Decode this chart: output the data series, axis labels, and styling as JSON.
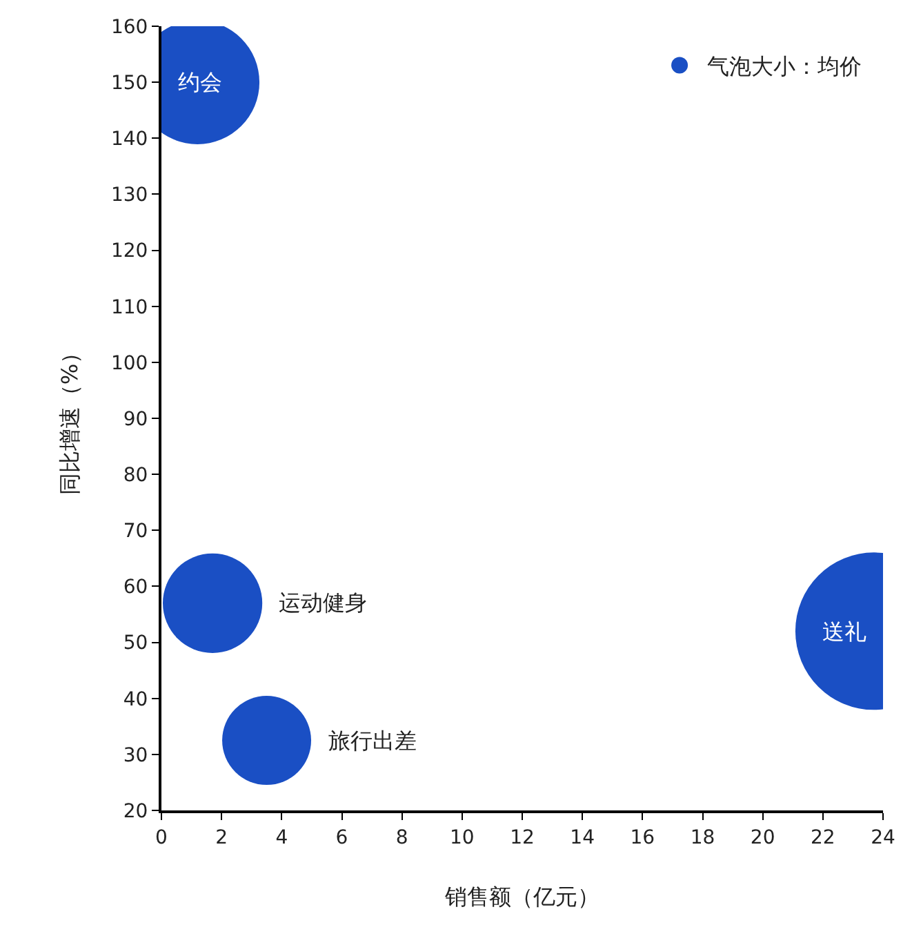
{
  "chart_data": {
    "type": "bubble",
    "xlabel": "销售额（亿元）",
    "ylabel": "同比增速（%）",
    "x": [
      1.2,
      1.7,
      3.5,
      23.7
    ],
    "series": [
      {
        "name": "气泡大小：均价",
        "color": "#1a4fc4",
        "values": [
          150,
          57,
          32.5,
          52
        ],
        "sizes": [
          0.62,
          0.4,
          0.32,
          1
        ]
      }
    ],
    "xlim": [
      0,
      24
    ],
    "xticks": [
      0,
      2,
      4,
      6,
      8,
      10,
      12,
      14,
      16,
      18,
      20,
      22,
      24
    ],
    "ylim": [
      20,
      160
    ],
    "yticks": [
      20,
      30,
      40,
      50,
      60,
      70,
      80,
      90,
      100,
      110,
      120,
      130,
      140,
      150,
      160
    ],
    "annotations": [
      {
        "text": "约会",
        "x": 1.2,
        "y": 150
      },
      {
        "text": "运动健身",
        "x": 1.7,
        "y": 57
      },
      {
        "text": "旅行出差",
        "x": 3.5,
        "y": 32.5
      },
      {
        "text": "送礼",
        "x": 23.7,
        "y": 52
      }
    ],
    "legend": "top right",
    "marker": "circle"
  }
}
